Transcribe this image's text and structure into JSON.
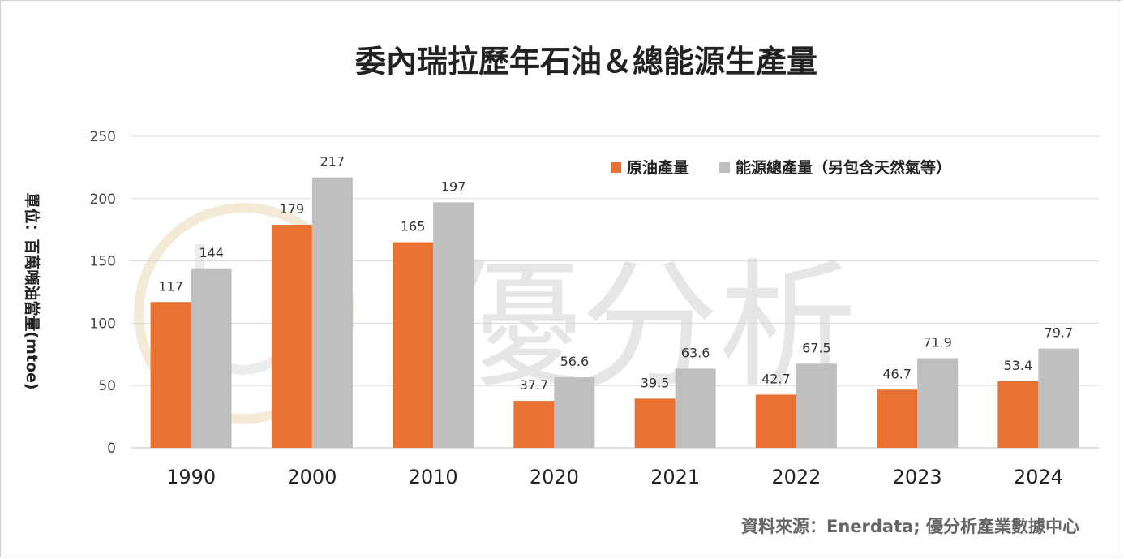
{
  "chart_data": {
    "type": "bar",
    "title": "委內瑞拉歷年石油＆總能源生產量",
    "ylabel": "單位：百萬噸油當量(mtoe)",
    "xlabel": "",
    "categories": [
      "1990",
      "2000",
      "2010",
      "2020",
      "2021",
      "2022",
      "2023",
      "2024"
    ],
    "series": [
      {
        "name": "原油產量",
        "color": "#E97132",
        "values": [
          117,
          179,
          165,
          37.7,
          39.5,
          42.7,
          46.7,
          53.4
        ]
      },
      {
        "name": "能源總產量（另包含天然氣等）",
        "color": "#BFBFBF",
        "values": [
          144,
          217,
          197,
          56.6,
          63.6,
          67.5,
          71.9,
          79.7
        ]
      }
    ],
    "ylim": [
      0,
      250
    ],
    "yticks": [
      0,
      50,
      100,
      150,
      200,
      250
    ],
    "grid": true,
    "legend_position": "top-right",
    "source": "資料來源：Enerdata; 優分析產業數據中心",
    "watermark": "優分析"
  }
}
